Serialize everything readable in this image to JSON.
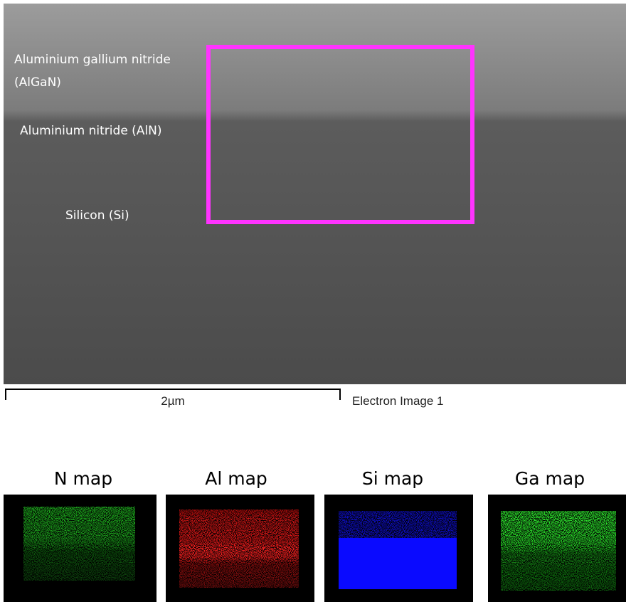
{
  "sem_image": {
    "labels": [
      "Aluminium gallium nitride",
      "(AlGaN)",
      "Aluminium nitride (AlN)",
      "Silicon (Si)"
    ],
    "scale_bar": "2µm",
    "caption": "Electron Image 1"
  },
  "maps": [
    {
      "title": "N map"
    },
    {
      "title": "Al map"
    },
    {
      "title": "Si map"
    },
    {
      "title": "Ga map"
    }
  ]
}
